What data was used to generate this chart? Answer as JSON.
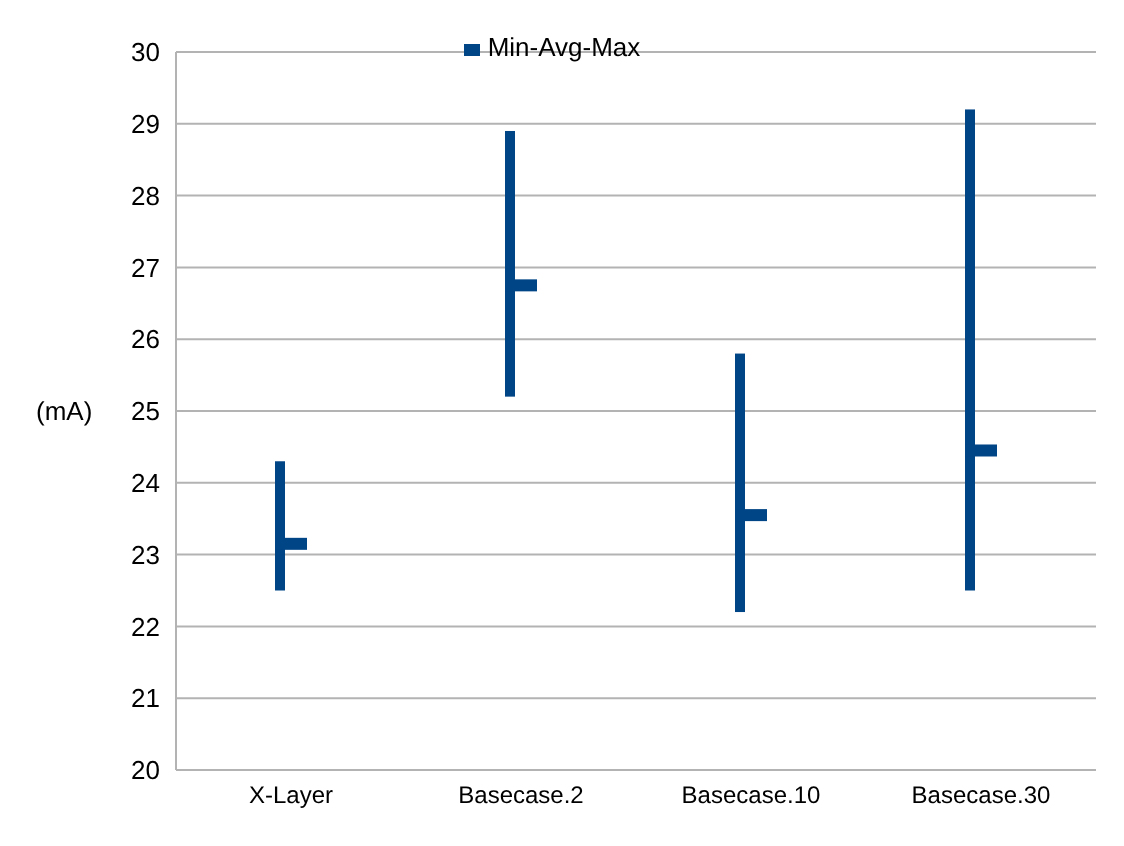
{
  "chart_data": {
    "type": "bar",
    "ylabel": "(mA)",
    "categories": [
      "X-Layer",
      "Basecase.2",
      "Basecase.10",
      "Basecase.30"
    ],
    "series": [
      {
        "name": "Min-Avg-Max",
        "color": "#004586",
        "base": [
          22.5,
          25.2,
          22.2,
          22.5
        ],
        "values": [
          1.8,
          3.7,
          3.6,
          6.7
        ]
      },
      {
        "type": "scatter",
        "color": "#004586",
        "values": [
          23.15,
          26.75,
          23.55,
          24.45
        ]
      }
    ],
    "ylim": [
      20,
      30
    ],
    "yticks": [
      20,
      21,
      22,
      23,
      24,
      25,
      26,
      27,
      28,
      29,
      30
    ],
    "grid": "y",
    "legend": "top"
  }
}
